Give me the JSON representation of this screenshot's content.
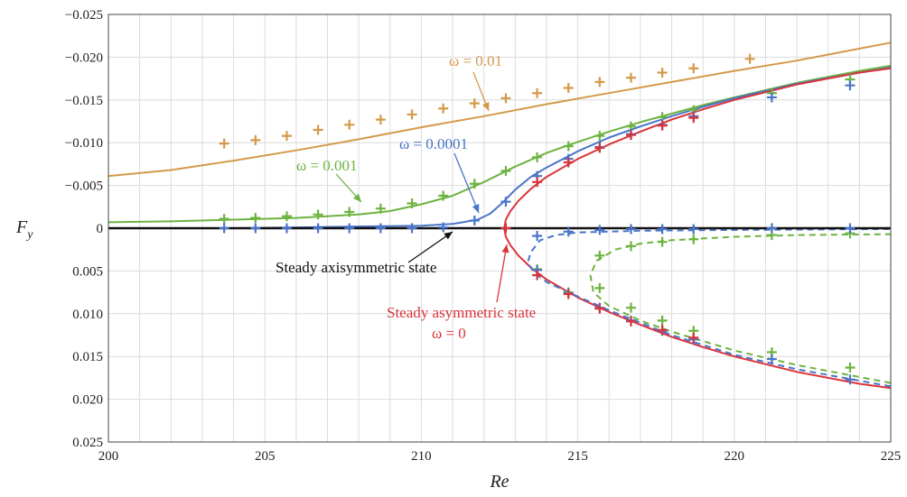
{
  "chart_data": {
    "type": "line",
    "xlabel": "Re",
    "ylabel": "F_y",
    "xlim": [
      200,
      225
    ],
    "ylim": [
      0.025,
      -0.025
    ],
    "x_ticks": [
      200,
      205,
      210,
      215,
      220,
      225
    ],
    "y_ticks": [
      {
        "value": -0.025,
        "label": "−0.025"
      },
      {
        "value": -0.02,
        "label": "−0.020"
      },
      {
        "value": -0.015,
        "label": "−0.015"
      },
      {
        "value": -0.01,
        "label": "−0.010"
      },
      {
        "value": -0.005,
        "label": "−0.005"
      },
      {
        "value": 0,
        "label": "0"
      },
      {
        "value": 0.005,
        "label": "0.005"
      },
      {
        "value": 0.01,
        "label": "0.010"
      },
      {
        "value": 0.015,
        "label": "0.015"
      },
      {
        "value": 0.02,
        "label": "0.020"
      },
      {
        "value": 0.025,
        "label": "0.025"
      }
    ],
    "grid": true,
    "series": [
      {
        "name": "ω = 0.01",
        "color": "#d39a4a",
        "style": "solid",
        "points": [
          [
            200,
            -0.0061
          ],
          [
            202,
            -0.0068
          ],
          [
            204,
            -0.0079
          ],
          [
            206,
            -0.0091
          ],
          [
            208,
            -0.0104
          ],
          [
            210,
            -0.0118
          ],
          [
            212,
            -0.0131
          ],
          [
            214,
            -0.0145
          ],
          [
            216,
            -0.0158
          ],
          [
            218,
            -0.0171
          ],
          [
            220,
            -0.0184
          ],
          [
            222,
            -0.0196
          ],
          [
            224,
            -0.021
          ],
          [
            225,
            -0.0217
          ]
        ]
      },
      {
        "name": "ω = 0.001",
        "color": "#6db33f",
        "style": "solid",
        "points": [
          [
            200,
            -0.0007
          ],
          [
            202,
            -0.0008
          ],
          [
            204,
            -0.001
          ],
          [
            206,
            -0.0012
          ],
          [
            208,
            -0.0016
          ],
          [
            209,
            -0.002
          ],
          [
            210,
            -0.0028
          ],
          [
            211,
            -0.0038
          ],
          [
            212,
            -0.0054
          ],
          [
            213,
            -0.0072
          ],
          [
            214,
            -0.0088
          ],
          [
            215,
            -0.0101
          ],
          [
            216,
            -0.0113
          ],
          [
            217,
            -0.0124
          ],
          [
            218,
            -0.0134
          ],
          [
            219,
            -0.0144
          ],
          [
            220,
            -0.0153
          ],
          [
            222,
            -0.017
          ],
          [
            224,
            -0.0184
          ],
          [
            225,
            -0.019
          ]
        ]
      },
      {
        "name": "ω = 0.0001",
        "color": "#4a74c9",
        "style": "solid",
        "points": [
          [
            200,
            0
          ],
          [
            204,
            0
          ],
          [
            206,
            -0.0001
          ],
          [
            208,
            -0.0002
          ],
          [
            210,
            -0.0003
          ],
          [
            211,
            -0.0005
          ],
          [
            211.8,
            -0.001
          ],
          [
            212.2,
            -0.0017
          ],
          [
            212.6,
            -0.003
          ],
          [
            213,
            -0.0045
          ],
          [
            213.5,
            -0.006
          ],
          [
            214,
            -0.0071
          ],
          [
            215,
            -0.009
          ],
          [
            216,
            -0.0106
          ],
          [
            217,
            -0.0119
          ],
          [
            218,
            -0.0131
          ],
          [
            219,
            -0.0142
          ],
          [
            220,
            -0.0152
          ],
          [
            222,
            -0.0169
          ],
          [
            224,
            -0.0182
          ],
          [
            225,
            -0.0188
          ]
        ]
      },
      {
        "name": "Steady asymmetric state ω = 0 (upper)",
        "color": "#d9343b",
        "style": "solid",
        "points": [
          [
            212.65,
            0
          ],
          [
            212.7,
            -0.001
          ],
          [
            212.85,
            -0.002
          ],
          [
            213.1,
            -0.0032
          ],
          [
            213.5,
            -0.0046
          ],
          [
            214,
            -0.006
          ],
          [
            215,
            -0.0081
          ],
          [
            216,
            -0.0098
          ],
          [
            217,
            -0.0113
          ],
          [
            218,
            -0.0127
          ],
          [
            219,
            -0.0139
          ],
          [
            220,
            -0.015
          ],
          [
            222,
            -0.0168
          ],
          [
            224,
            -0.0182
          ],
          [
            225,
            -0.0187
          ]
        ]
      },
      {
        "name": "Steady asymmetric state ω = 0 (lower)",
        "color": "#d9343b",
        "style": "solid",
        "points": [
          [
            212.65,
            0
          ],
          [
            212.7,
            0.001
          ],
          [
            212.85,
            0.002
          ],
          [
            213.1,
            0.0032
          ],
          [
            213.5,
            0.0046
          ],
          [
            214,
            0.006
          ],
          [
            215,
            0.0081
          ],
          [
            216,
            0.0098
          ],
          [
            217,
            0.0113
          ],
          [
            218,
            0.0127
          ],
          [
            219,
            0.0139
          ],
          [
            220,
            0.015
          ],
          [
            222,
            0.0168
          ],
          [
            224,
            0.0182
          ],
          [
            225,
            0.0187
          ]
        ]
      },
      {
        "name": "ω = 0.0001 (lower branch)",
        "color": "#4a74c9",
        "style": "dashed",
        "points": [
          [
            225,
            0.0185
          ],
          [
            222,
            0.0165
          ],
          [
            220,
            0.0148
          ],
          [
            218,
            0.0125
          ],
          [
            216,
            0.0096
          ],
          [
            215,
            0.008
          ],
          [
            214,
            0.0063
          ],
          [
            213.6,
            0.0052
          ],
          [
            213.4,
            0.004
          ],
          [
            213.5,
            0.0028
          ],
          [
            213.8,
            0.0014
          ],
          [
            214.3,
            0.0008
          ],
          [
            215,
            0.0005
          ],
          [
            217,
            0.0003
          ],
          [
            220,
            0.0002
          ],
          [
            225,
            0.0001
          ]
        ]
      },
      {
        "name": "ω = 0.001 (lower branch)",
        "color": "#6db33f",
        "style": "dashed",
        "points": [
          [
            225,
            0.0181
          ],
          [
            222,
            0.016
          ],
          [
            220,
            0.0143
          ],
          [
            218,
            0.0121
          ],
          [
            217,
            0.0108
          ],
          [
            216,
            0.0091
          ],
          [
            215.5,
            0.0075
          ],
          [
            215.4,
            0.0055
          ],
          [
            215.6,
            0.0038
          ],
          [
            216.2,
            0.0025
          ],
          [
            217,
            0.0018
          ],
          [
            218,
            0.0014
          ],
          [
            220,
            0.001
          ],
          [
            222,
            0.0008
          ],
          [
            225,
            0.0007
          ]
        ]
      },
      {
        "name": "Steady axisymmetric state",
        "color": "#111111",
        "style": "solid",
        "points": [
          [
            200,
            0
          ],
          [
            225,
            0
          ]
        ]
      }
    ],
    "markers": [
      {
        "name": "ω = 0.01 data",
        "color": "#d39a4a",
        "points": [
          [
            203.7,
            -0.0099
          ],
          [
            204.7,
            -0.0103
          ],
          [
            205.7,
            -0.0108
          ],
          [
            206.7,
            -0.0115
          ],
          [
            207.7,
            -0.0121
          ],
          [
            208.7,
            -0.0127
          ],
          [
            209.7,
            -0.0133
          ],
          [
            210.7,
            -0.014
          ],
          [
            211.7,
            -0.0146
          ],
          [
            212.7,
            -0.0152
          ],
          [
            213.7,
            -0.0158
          ],
          [
            214.7,
            -0.0164
          ],
          [
            215.7,
            -0.0171
          ],
          [
            216.7,
            -0.0176
          ],
          [
            217.7,
            -0.0182
          ],
          [
            218.7,
            -0.0187
          ],
          [
            220.5,
            -0.0198
          ]
        ]
      },
      {
        "name": "ω = 0.001 data",
        "color": "#6db33f",
        "points": [
          [
            203.7,
            -0.0011
          ],
          [
            204.7,
            -0.0012
          ],
          [
            205.7,
            -0.0014
          ],
          [
            206.7,
            -0.0016
          ],
          [
            207.7,
            -0.0019
          ],
          [
            208.7,
            -0.0023
          ],
          [
            209.7,
            -0.0029
          ],
          [
            210.7,
            -0.0038
          ],
          [
            211.7,
            -0.0052
          ],
          [
            212.7,
            -0.0067
          ],
          [
            213.7,
            -0.0083
          ],
          [
            214.7,
            -0.0096
          ],
          [
            215.7,
            -0.0108
          ],
          [
            216.7,
            -0.0119
          ],
          [
            217.7,
            -0.013
          ],
          [
            218.7,
            -0.0138
          ],
          [
            221.2,
            -0.0158
          ],
          [
            223.7,
            -0.0174
          ],
          [
            213.7,
            0.0048
          ],
          [
            214.7,
            0.0075
          ],
          [
            215.7,
            0.0032
          ],
          [
            215.7,
            0.007
          ],
          [
            216.7,
            0.0021
          ],
          [
            216.7,
            0.0093
          ],
          [
            217.7,
            0.0016
          ],
          [
            217.7,
            0.0108
          ],
          [
            218.7,
            0.0013
          ],
          [
            218.7,
            0.012
          ],
          [
            221.2,
            0.0008
          ],
          [
            221.2,
            0.0145
          ],
          [
            223.7,
            0.0006
          ],
          [
            223.7,
            0.0163
          ]
        ]
      },
      {
        "name": "ω = 0.0001 data",
        "color": "#4a74c9",
        "points": [
          [
            203.7,
            0
          ],
          [
            204.7,
            0
          ],
          [
            205.7,
            0
          ],
          [
            206.7,
            0
          ],
          [
            207.7,
            0
          ],
          [
            208.7,
            0
          ],
          [
            209.7,
            0
          ],
          [
            210.7,
            -0.0001
          ],
          [
            211.7,
            -0.0009
          ],
          [
            212.7,
            -0.0031
          ],
          [
            213.7,
            -0.0061
          ],
          [
            214.7,
            -0.0081
          ],
          [
            215.7,
            -0.0095
          ],
          [
            216.7,
            -0.011
          ],
          [
            217.7,
            -0.0121
          ],
          [
            218.7,
            -0.0131
          ],
          [
            221.2,
            -0.0153
          ],
          [
            223.7,
            -0.0167
          ],
          [
            213.7,
            0.0009
          ],
          [
            214.7,
            0.0004
          ],
          [
            215.7,
            0.0002
          ],
          [
            216.7,
            0.0001
          ],
          [
            217.7,
            0.0001
          ],
          [
            218.7,
            0.0001
          ],
          [
            221.2,
            0
          ],
          [
            223.7,
            0
          ],
          [
            213.7,
            0.0049
          ],
          [
            214.7,
            0.0076
          ],
          [
            215.7,
            0.0093
          ],
          [
            216.7,
            0.0108
          ],
          [
            217.7,
            0.012
          ],
          [
            218.7,
            0.013
          ],
          [
            221.2,
            0.0153
          ],
          [
            223.7,
            0.0177
          ]
        ]
      },
      {
        "name": "ω = 0 data",
        "color": "#d9343b",
        "points": [
          [
            212.7,
            0
          ],
          [
            213.7,
            -0.0054
          ],
          [
            214.7,
            -0.0077
          ],
          [
            215.7,
            -0.0094
          ],
          [
            216.7,
            -0.0109
          ],
          [
            217.7,
            -0.012
          ],
          [
            218.7,
            -0.0129
          ],
          [
            213.7,
            0.0055
          ],
          [
            214.7,
            0.0077
          ],
          [
            215.7,
            0.0094
          ],
          [
            216.7,
            0.0109
          ],
          [
            217.7,
            0.0119
          ],
          [
            218.7,
            0.0128
          ]
        ]
      }
    ],
    "annotations": [
      {
        "text": "ω = 0.01",
        "color": "#d39a4a"
      },
      {
        "text": "ω = 0.001",
        "color": "#6db33f"
      },
      {
        "text": "ω = 0.0001",
        "color": "#4a74c9"
      },
      {
        "text": "Steady axisymmetric state",
        "color": "#111111"
      },
      {
        "text": "Steady asymmetric state",
        "color": "#d9343b"
      },
      {
        "text": "ω = 0",
        "color": "#d9343b"
      }
    ]
  }
}
